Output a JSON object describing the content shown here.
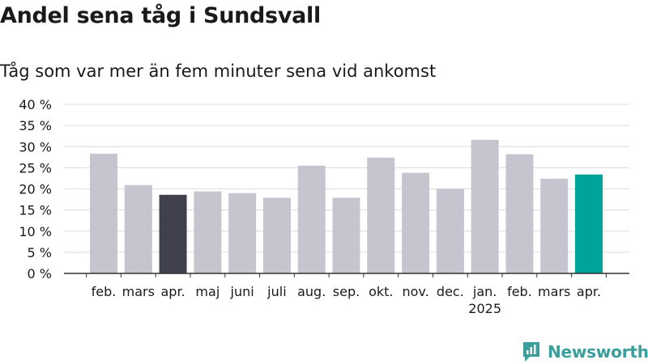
{
  "chart_data": {
    "type": "bar",
    "title": "Andel sena tåg i Sundsvall",
    "subtitle": "Tåg som var mer än fem minuter sena vid ankomst",
    "categories": [
      "feb.",
      "mars",
      "apr.",
      "maj",
      "juni",
      "juli",
      "aug.",
      "sep.",
      "okt.",
      "nov.",
      "dec.",
      "jan.",
      "feb.",
      "mars",
      "apr."
    ],
    "year_labels": [
      "",
      "",
      "",
      "",
      "",
      "",
      "",
      "",
      "",
      "",
      "",
      "2025",
      "",
      "",
      ""
    ],
    "values": [
      28.3,
      20.9,
      18.6,
      19.4,
      19.0,
      17.9,
      25.5,
      17.9,
      27.4,
      23.8,
      20.0,
      31.6,
      28.2,
      22.4,
      23.4
    ],
    "bar_colors": [
      "#c5c4cf",
      "#c5c4cf",
      "#41404f",
      "#c5c4cf",
      "#c5c4cf",
      "#c5c4cf",
      "#c5c4cf",
      "#c5c4cf",
      "#c5c4cf",
      "#c5c4cf",
      "#c5c4cf",
      "#c5c4cf",
      "#c5c4cf",
      "#c5c4cf",
      "#00a39a"
    ],
    "ylim": [
      0,
      40
    ],
    "yticks": [
      0,
      5,
      10,
      15,
      20,
      25,
      30,
      35,
      40
    ],
    "ytick_labels": [
      "0 %",
      "5 %",
      "10 %",
      "15 %",
      "20 %",
      "25 %",
      "30 %",
      "35 %",
      "40 %"
    ],
    "grid": true,
    "xlabel": "",
    "ylabel": ""
  },
  "branding": {
    "logo_text": "Newsworthy",
    "logo_icon": "newsworthy-chart-bubble-icon",
    "logo_color": "#3a9e9a"
  }
}
